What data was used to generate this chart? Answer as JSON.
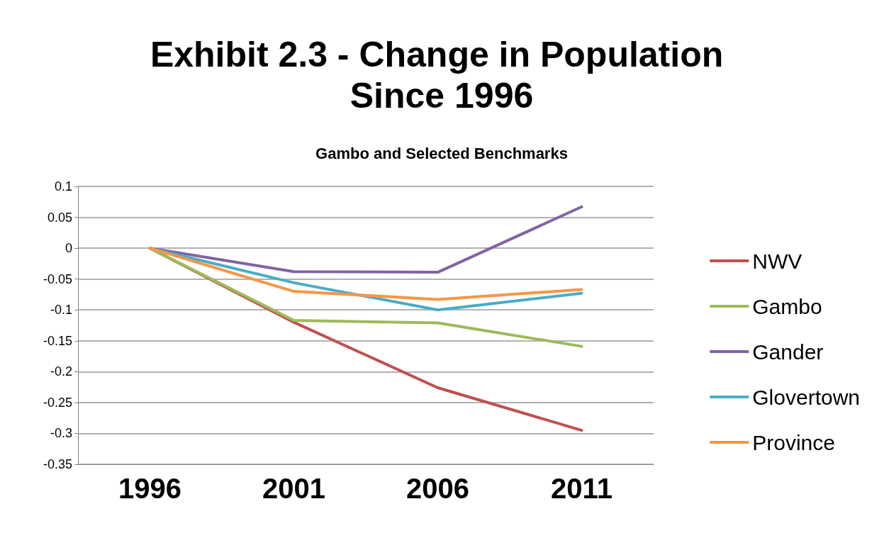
{
  "chart_data": {
    "type": "line",
    "title": "Exhibit 2.3 - Change in Population Since 1996",
    "subtitle": "Gambo and Selected Benchmarks",
    "categories": [
      "1996",
      "2001",
      "2006",
      "2011"
    ],
    "series": [
      {
        "name": "NWV",
        "color": "#c0504d",
        "values": [
          0,
          -0.12,
          -0.226,
          -0.295
        ]
      },
      {
        "name": "Gambo",
        "color": "#9bbb59",
        "values": [
          0,
          -0.117,
          -0.121,
          -0.159
        ]
      },
      {
        "name": "Gander",
        "color": "#8064a2",
        "values": [
          0,
          -0.038,
          -0.039,
          0.067
        ]
      },
      {
        "name": "Glovertown",
        "color": "#4bacc6",
        "values": [
          0,
          -0.056,
          -0.1,
          -0.073
        ]
      },
      {
        "name": "Province",
        "color": "#f79646",
        "values": [
          0,
          -0.07,
          -0.083,
          -0.067
        ]
      }
    ],
    "ylim": [
      -0.35,
      0.1
    ],
    "yticks": [
      -0.35,
      -0.3,
      -0.25,
      -0.2,
      -0.15,
      -0.1,
      -0.05,
      0,
      0.05,
      0.1
    ],
    "grid": "y",
    "legend": "right",
    "marker": "none",
    "line_style": "solid"
  }
}
